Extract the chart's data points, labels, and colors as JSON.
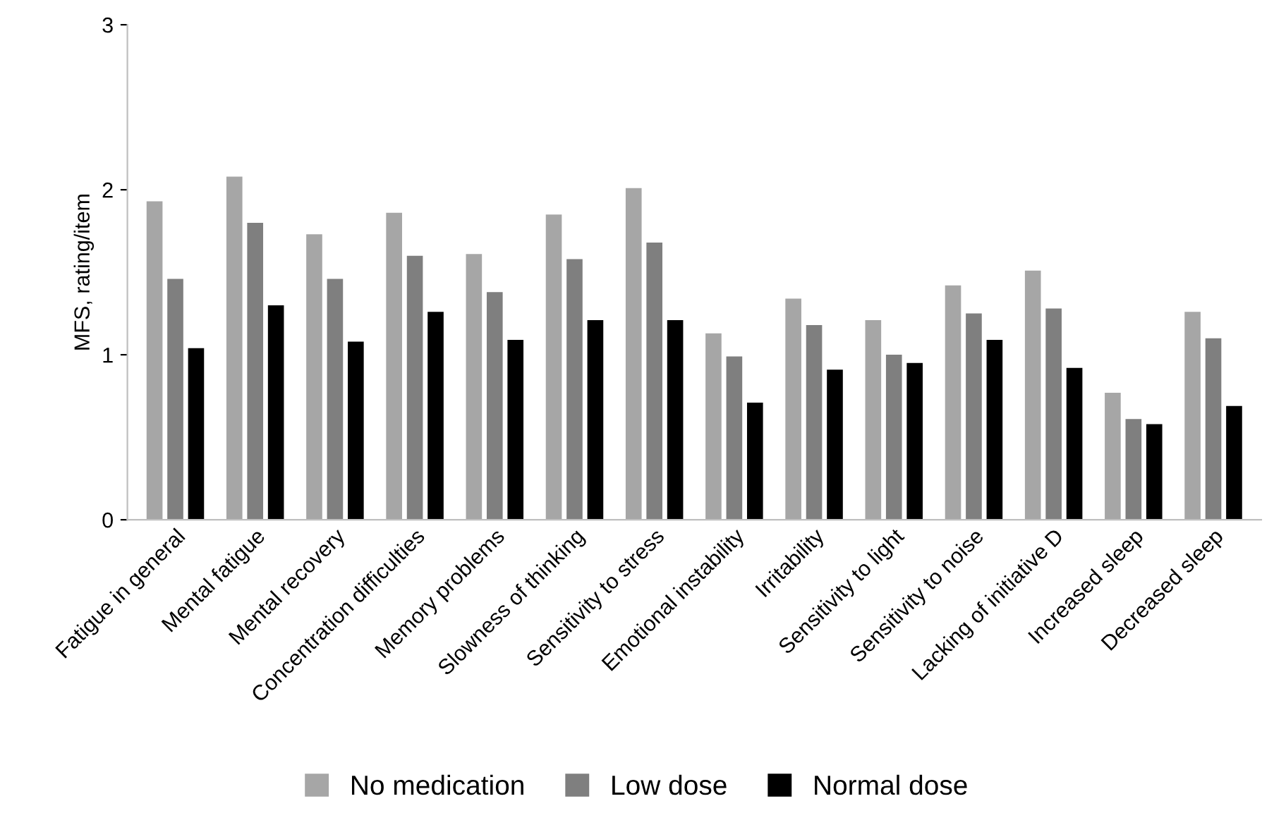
{
  "chart_data": {
    "type": "bar",
    "ylabel": "MFS, rating/item",
    "categories": [
      "Fatigue in general",
      "Mental fatigue",
      "Mental recovery",
      "Concentration difficulties",
      "Memory problems",
      "Slowness of thinking",
      "Sensitivity to stress",
      "Emotional instability",
      "Irritability",
      "Sensitivity to light",
      "Sensitivity to noise",
      "Lacking of initiative D",
      "Increased sleep",
      "Decreased sleep"
    ],
    "series": [
      {
        "name": "No medication",
        "color": "#a6a6a6",
        "values": [
          1.93,
          2.08,
          1.73,
          1.86,
          1.61,
          1.85,
          2.01,
          1.13,
          1.34,
          1.21,
          1.42,
          1.51,
          0.77,
          1.26
        ]
      },
      {
        "name": "Low dose",
        "color": "#7f7f7f",
        "values": [
          1.46,
          1.8,
          1.46,
          1.6,
          1.38,
          1.58,
          1.68,
          0.99,
          1.18,
          1.0,
          1.25,
          1.28,
          0.61,
          1.1
        ]
      },
      {
        "name": "Normal dose",
        "color": "#000000",
        "values": [
          1.04,
          1.3,
          1.08,
          1.26,
          1.09,
          1.21,
          1.21,
          0.71,
          0.91,
          0.95,
          1.09,
          0.92,
          0.58,
          0.69
        ]
      }
    ],
    "ylim": [
      0,
      3
    ],
    "yticks": [
      0,
      1,
      2,
      3
    ],
    "grid": false,
    "legend": "bottom"
  }
}
